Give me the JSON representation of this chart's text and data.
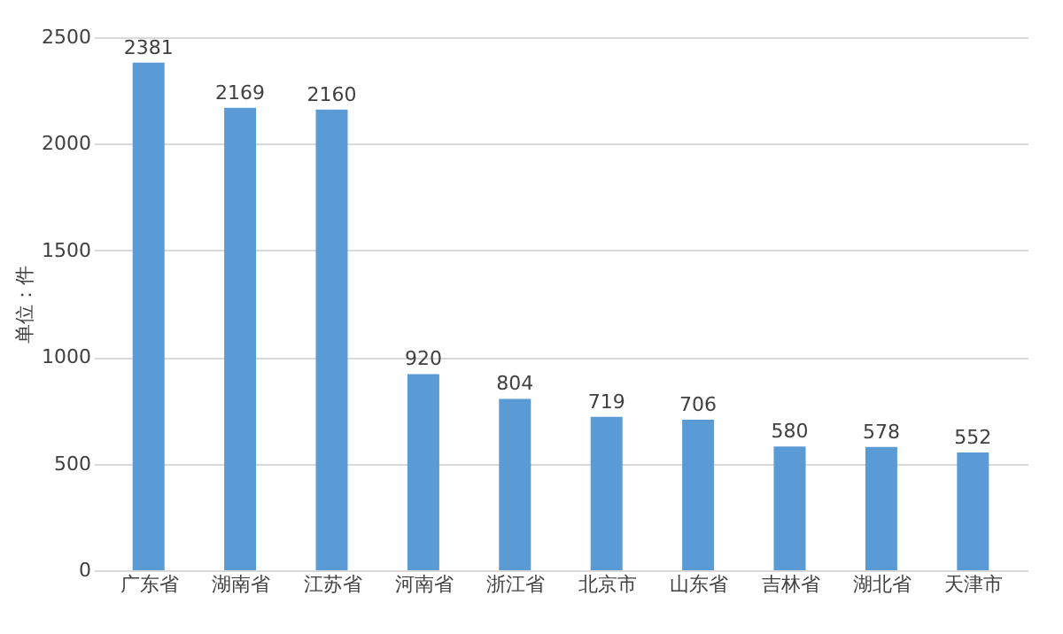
{
  "chart_data": {
    "type": "bar",
    "ylabel": "单位：件",
    "categories": [
      "广东省",
      "湖南省",
      "江苏省",
      "河南省",
      "浙江省",
      "北京市",
      "山东省",
      "吉林省",
      "湖北省",
      "天津市"
    ],
    "values": [
      2381,
      2169,
      2160,
      920,
      804,
      719,
      706,
      580,
      578,
      552
    ],
    "color": "#5b9bd5",
    "ylim": [
      0,
      2500
    ],
    "yticks": [
      0,
      500,
      1000,
      1500,
      2000,
      2500
    ],
    "grid": "y",
    "data_labels": true
  }
}
